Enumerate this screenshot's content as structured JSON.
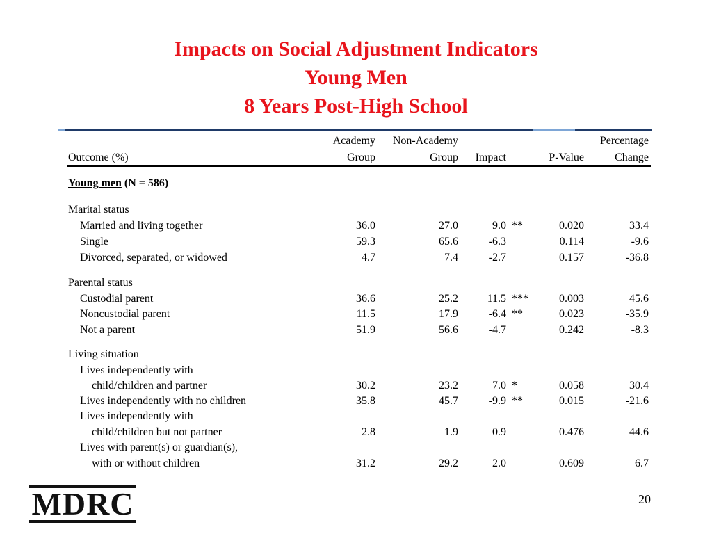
{
  "title": {
    "line1": "Impacts on Social Adjustment Indicators",
    "line2": "Young Men",
    "line3": "8 Years Post-High School"
  },
  "header": {
    "outcome": "Outcome (%)",
    "academy_top": "Academy",
    "academy_bottom": "Group",
    "nonacademy_top": "Non-Academy",
    "nonacademy_bottom": "Group",
    "impact": "Impact",
    "pvalue": "P-Value",
    "pct_top": "Percentage",
    "pct_bottom": "Change"
  },
  "section": {
    "label": "Young men",
    "n": " (N = 586)"
  },
  "groups": {
    "marital": "Marital status",
    "parental": "Parental status",
    "living": "Living situation"
  },
  "rows": [
    {
      "label": "Married and living together",
      "academy": "36.0",
      "nonacademy": "27.0",
      "impact": "9.0",
      "stars": "**",
      "p": "0.020",
      "pct": "33.4"
    },
    {
      "label": "Single",
      "academy": "59.3",
      "nonacademy": "65.6",
      "impact": "-6.3",
      "stars": "",
      "p": "0.114",
      "pct": "-9.6"
    },
    {
      "label": "Divorced, separated, or widowed",
      "academy": "4.7",
      "nonacademy": "7.4",
      "impact": "-2.7",
      "stars": "",
      "p": "0.157",
      "pct": "-36.8"
    },
    {
      "label": "Custodial parent",
      "academy": "36.6",
      "nonacademy": "25.2",
      "impact": "11.5",
      "stars": "***",
      "p": "0.003",
      "pct": "45.6"
    },
    {
      "label": "Noncustodial parent",
      "academy": "11.5",
      "nonacademy": "17.9",
      "impact": "-6.4",
      "stars": "**",
      "p": "0.023",
      "pct": "-35.9"
    },
    {
      "label": "Not a parent",
      "academy": "51.9",
      "nonacademy": "56.6",
      "impact": "-4.7",
      "stars": "",
      "p": "0.242",
      "pct": "-8.3"
    },
    {
      "label": "Lives independently with",
      "label2": "child/children and partner",
      "academy": "30.2",
      "nonacademy": "23.2",
      "impact": "7.0",
      "stars": "*",
      "p": "0.058",
      "pct": "30.4"
    },
    {
      "label": "Lives independently with no children",
      "academy": "35.8",
      "nonacademy": "45.7",
      "impact": "-9.9",
      "stars": "**",
      "p": "0.015",
      "pct": "-21.6"
    },
    {
      "label": "Lives independently with",
      "label2": "child/children but not partner",
      "academy": "2.8",
      "nonacademy": "1.9",
      "impact": "0.9",
      "stars": "",
      "p": "0.476",
      "pct": "44.6"
    },
    {
      "label": "Lives with parent(s) or guardian(s),",
      "label2": "with or without children",
      "academy": "31.2",
      "nonacademy": "29.2",
      "impact": "2.0",
      "stars": "",
      "p": "0.609",
      "pct": "6.7"
    }
  ],
  "logo": "MDRC",
  "page_number": "20"
}
